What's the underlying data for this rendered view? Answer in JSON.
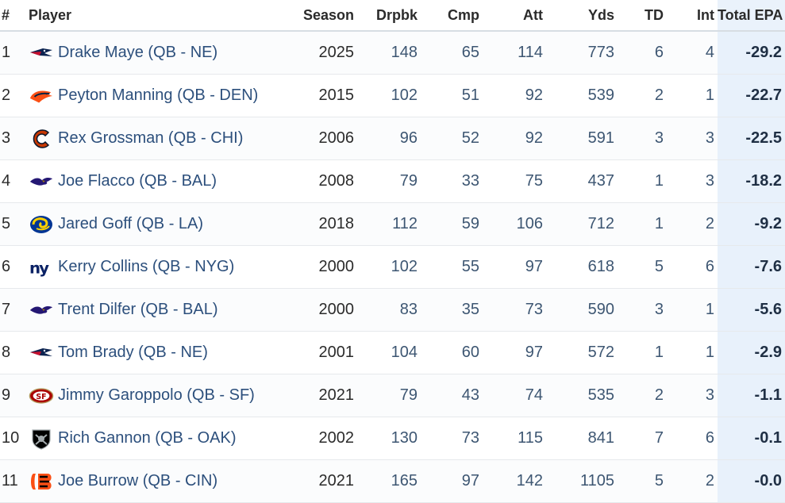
{
  "table": {
    "headers": {
      "rank": "#",
      "player": "Player",
      "season": "Season",
      "dropbacks": "Drpbk",
      "completions": "Cmp",
      "attempts": "Att",
      "yards": "Yds",
      "touchdowns": "TD",
      "interceptions": "Int",
      "total_epa": "Total EPA"
    },
    "sort": {
      "column": "total_epa",
      "direction": "ascending",
      "icon": "triangle-up-icon"
    },
    "rows": [
      {
        "rank": "1",
        "logo": "patriots-logo",
        "player": "Drake Maye (QB - NE)",
        "season": "2025",
        "dropbacks": "148",
        "completions": "65",
        "attempts": "114",
        "yards": "773",
        "touchdowns": "6",
        "interceptions": "4",
        "total_epa": "-29.2"
      },
      {
        "rank": "2",
        "logo": "broncos-logo",
        "player": "Peyton Manning (QB - DEN)",
        "season": "2015",
        "dropbacks": "102",
        "completions": "51",
        "attempts": "92",
        "yards": "539",
        "touchdowns": "2",
        "interceptions": "1",
        "total_epa": "-22.7"
      },
      {
        "rank": "3",
        "logo": "bears-logo",
        "player": "Rex Grossman (QB - CHI)",
        "season": "2006",
        "dropbacks": "96",
        "completions": "52",
        "attempts": "92",
        "yards": "591",
        "touchdowns": "3",
        "interceptions": "3",
        "total_epa": "-22.5"
      },
      {
        "rank": "4",
        "logo": "ravens-logo",
        "player": "Joe Flacco (QB - BAL)",
        "season": "2008",
        "dropbacks": "79",
        "completions": "33",
        "attempts": "75",
        "yards": "437",
        "touchdowns": "1",
        "interceptions": "3",
        "total_epa": "-18.2"
      },
      {
        "rank": "5",
        "logo": "rams-logo",
        "player": "Jared Goff (QB - LA)",
        "season": "2018",
        "dropbacks": "112",
        "completions": "59",
        "attempts": "106",
        "yards": "712",
        "touchdowns": "1",
        "interceptions": "2",
        "total_epa": "-9.2"
      },
      {
        "rank": "6",
        "logo": "giants-logo",
        "player": "Kerry Collins (QB - NYG)",
        "season": "2000",
        "dropbacks": "102",
        "completions": "55",
        "attempts": "97",
        "yards": "618",
        "touchdowns": "5",
        "interceptions": "6",
        "total_epa": "-7.6"
      },
      {
        "rank": "7",
        "logo": "ravens-logo",
        "player": "Trent Dilfer (QB - BAL)",
        "season": "2000",
        "dropbacks": "83",
        "completions": "35",
        "attempts": "73",
        "yards": "590",
        "touchdowns": "3",
        "interceptions": "1",
        "total_epa": "-5.6"
      },
      {
        "rank": "8",
        "logo": "patriots-logo",
        "player": "Tom Brady (QB - NE)",
        "season": "2001",
        "dropbacks": "104",
        "completions": "60",
        "attempts": "97",
        "yards": "572",
        "touchdowns": "1",
        "interceptions": "1",
        "total_epa": "-2.9"
      },
      {
        "rank": "9",
        "logo": "49ers-logo",
        "player": "Jimmy Garoppolo (QB - SF)",
        "season": "2021",
        "dropbacks": "79",
        "completions": "43",
        "attempts": "74",
        "yards": "535",
        "touchdowns": "2",
        "interceptions": "3",
        "total_epa": "-1.1"
      },
      {
        "rank": "10",
        "logo": "raiders-logo",
        "player": "Rich Gannon (QB - OAK)",
        "season": "2002",
        "dropbacks": "130",
        "completions": "73",
        "attempts": "115",
        "yards": "841",
        "touchdowns": "7",
        "interceptions": "6",
        "total_epa": "-0.1"
      },
      {
        "rank": "11",
        "logo": "bengals-logo",
        "player": "Joe Burrow (QB - CIN)",
        "season": "2021",
        "dropbacks": "165",
        "completions": "97",
        "attempts": "142",
        "yards": "1105",
        "touchdowns": "5",
        "interceptions": "2",
        "total_epa": "-0.0"
      }
    ]
  },
  "colors": {
    "link": "#2c4f7c",
    "highlight_column_bg": "#e8f1fb",
    "patriots_navy": "#0b2350",
    "patriots_red": "#c8102e",
    "broncos_orange": "#fb4f14",
    "bears_orange": "#c83803",
    "ravens_purple": "#241773",
    "rams_blue": "#003594",
    "rams_gold": "#ffd100",
    "giants_blue": "#0b2265",
    "niners_red": "#aa0000",
    "niners_gold": "#b3995d",
    "raiders_black": "#000000",
    "bengals_orange": "#fb4f14"
  }
}
